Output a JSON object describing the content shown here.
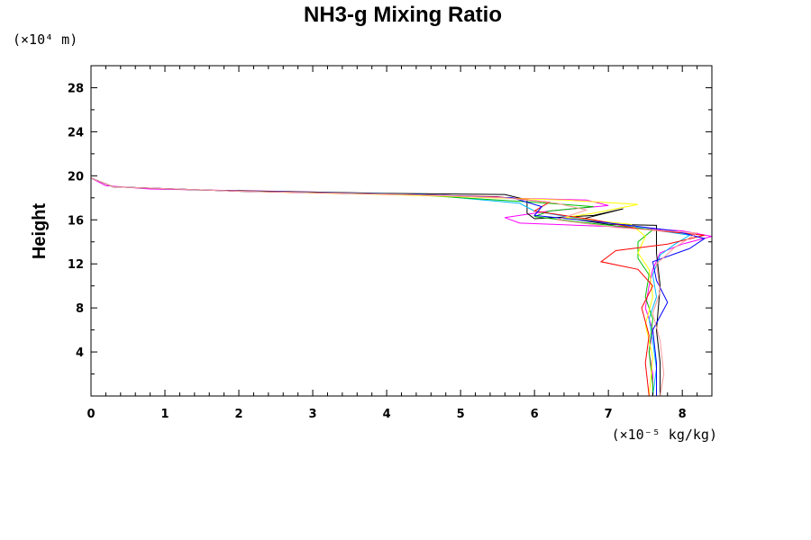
{
  "chart_data": {
    "type": "line",
    "title": "NH3-g Mixing Ratio",
    "ylabel": "Height",
    "y_unit": "(×10⁴ m)",
    "x_unit": "(×10⁻⁵ kg/kg)",
    "xlim": [
      0,
      8.4
    ],
    "ylim": [
      0,
      30
    ],
    "x_ticks": [
      0,
      1,
      2,
      3,
      4,
      5,
      6,
      7,
      8
    ],
    "y_ticks": [
      4,
      8,
      12,
      16,
      20,
      24,
      28
    ],
    "grid": false,
    "series": [
      {
        "color": "#ff00ff",
        "points": [
          [
            0,
            30
          ],
          [
            0,
            19.8
          ],
          [
            0.2,
            19.1
          ],
          [
            0.8,
            18.8
          ],
          [
            2.5,
            18.6
          ],
          [
            4.5,
            18.3
          ],
          [
            5.5,
            18.0
          ],
          [
            6.7,
            17.8
          ],
          [
            7.0,
            17.3
          ],
          [
            6.2,
            16.8
          ],
          [
            5.6,
            16.2
          ],
          [
            5.8,
            15.7
          ],
          [
            7.0,
            15.4
          ],
          [
            8.0,
            15.0
          ],
          [
            8.4,
            14.5
          ],
          [
            8.0,
            13.8
          ],
          [
            7.7,
            13.0
          ],
          [
            7.6,
            11.5
          ],
          [
            7.55,
            10.0
          ],
          [
            7.5,
            8.0
          ],
          [
            7.6,
            6.0
          ],
          [
            7.55,
            4.0
          ],
          [
            7.6,
            2.0
          ],
          [
            7.6,
            0
          ]
        ]
      },
      {
        "color": "#000000",
        "points": [
          [
            0,
            19.8
          ],
          [
            0.3,
            19.0
          ],
          [
            1.5,
            18.7
          ],
          [
            4.0,
            18.4
          ],
          [
            5.6,
            18.3
          ],
          [
            5.9,
            17.8
          ],
          [
            5.9,
            16.6
          ],
          [
            6.0,
            16.1
          ],
          [
            6.8,
            16.4
          ],
          [
            7.2,
            17.0
          ],
          [
            6.6,
            16.0
          ],
          [
            7.0,
            15.6
          ],
          [
            7.65,
            15.5
          ],
          [
            7.65,
            13.0
          ],
          [
            7.7,
            10.0
          ],
          [
            7.65,
            6.0
          ],
          [
            7.7,
            3.0
          ],
          [
            7.7,
            0
          ]
        ]
      },
      {
        "color": "#00bbff",
        "points": [
          [
            0,
            19.8
          ],
          [
            0.3,
            19.0
          ],
          [
            2.0,
            18.6
          ],
          [
            4.5,
            18.3
          ],
          [
            5.8,
            17.5
          ],
          [
            6.0,
            16.8
          ],
          [
            6.6,
            16.1
          ],
          [
            7.3,
            15.4
          ],
          [
            8.1,
            14.6
          ],
          [
            7.9,
            13.8
          ],
          [
            7.7,
            12.8
          ],
          [
            7.6,
            11.0
          ],
          [
            7.65,
            9.0
          ],
          [
            7.55,
            7.0
          ],
          [
            7.6,
            5.0
          ],
          [
            7.65,
            2.5
          ],
          [
            7.6,
            0
          ]
        ]
      },
      {
        "color": "#00c000",
        "points": [
          [
            0,
            19.8
          ],
          [
            0.3,
            19.0
          ],
          [
            2.0,
            18.6
          ],
          [
            4.3,
            18.3
          ],
          [
            6.0,
            17.6
          ],
          [
            6.8,
            17.2
          ],
          [
            6.2,
            16.8
          ],
          [
            6.0,
            16.3
          ],
          [
            6.6,
            15.8
          ],
          [
            7.6,
            15.1
          ],
          [
            7.4,
            14.0
          ],
          [
            7.4,
            12.5
          ],
          [
            7.55,
            11.0
          ],
          [
            7.5,
            9.0
          ],
          [
            7.6,
            7.0
          ],
          [
            7.55,
            4.0
          ],
          [
            7.6,
            1.0
          ],
          [
            7.6,
            0
          ]
        ]
      },
      {
        "color": "#ffff00",
        "points": [
          [
            0,
            19.8
          ],
          [
            0.3,
            19.0
          ],
          [
            2.0,
            18.6
          ],
          [
            4.0,
            18.3
          ],
          [
            5.0,
            18.1
          ],
          [
            6.4,
            17.8
          ],
          [
            7.4,
            17.4
          ],
          [
            6.8,
            16.6
          ],
          [
            6.4,
            16.2
          ],
          [
            7.3,
            15.6
          ],
          [
            7.5,
            14.5
          ],
          [
            7.4,
            13.0
          ],
          [
            7.55,
            11.5
          ],
          [
            7.6,
            9.0
          ],
          [
            7.5,
            6.5
          ],
          [
            7.6,
            3.5
          ],
          [
            7.55,
            0
          ]
        ]
      },
      {
        "color": "#ff0000",
        "points": [
          [
            0,
            19.8
          ],
          [
            0.3,
            19.0
          ],
          [
            2.0,
            18.6
          ],
          [
            4.2,
            18.3
          ],
          [
            5.5,
            18.1
          ],
          [
            6.2,
            17.6
          ],
          [
            6.0,
            16.8
          ],
          [
            6.8,
            16.0
          ],
          [
            7.4,
            15.2
          ],
          [
            8.3,
            14.6
          ],
          [
            7.8,
            13.8
          ],
          [
            7.1,
            13.2
          ],
          [
            6.9,
            12.2
          ],
          [
            7.4,
            11.5
          ],
          [
            7.6,
            10.0
          ],
          [
            7.45,
            8.0
          ],
          [
            7.55,
            5.5
          ],
          [
            7.5,
            3.0
          ],
          [
            7.55,
            0
          ]
        ]
      },
      {
        "color": "#0000ff",
        "points": [
          [
            0,
            19.8
          ],
          [
            0.3,
            19.0
          ],
          [
            2.0,
            18.6
          ],
          [
            4.4,
            18.3
          ],
          [
            5.7,
            18.0
          ],
          [
            6.1,
            17.2
          ],
          [
            6.0,
            16.4
          ],
          [
            6.9,
            15.8
          ],
          [
            7.9,
            15.0
          ],
          [
            8.3,
            14.3
          ],
          [
            8.1,
            13.4
          ],
          [
            7.6,
            12.2
          ],
          [
            7.65,
            10.5
          ],
          [
            7.8,
            8.5
          ],
          [
            7.6,
            6.0
          ],
          [
            7.65,
            3.0
          ],
          [
            7.65,
            0
          ]
        ]
      },
      {
        "color": "#ff9999",
        "points": [
          [
            0,
            19.8
          ],
          [
            0.3,
            19.0
          ],
          [
            2.0,
            18.6
          ],
          [
            4.3,
            18.3
          ],
          [
            5.6,
            18.0
          ],
          [
            6.3,
            17.5
          ],
          [
            6.7,
            16.9
          ],
          [
            6.3,
            16.0
          ],
          [
            7.1,
            15.3
          ],
          [
            8.2,
            14.8
          ],
          [
            7.9,
            13.5
          ],
          [
            7.65,
            12.0
          ],
          [
            7.7,
            9.5
          ],
          [
            7.6,
            7.5
          ],
          [
            7.7,
            5.0
          ],
          [
            7.75,
            2.0
          ],
          [
            7.7,
            0
          ]
        ]
      }
    ]
  }
}
